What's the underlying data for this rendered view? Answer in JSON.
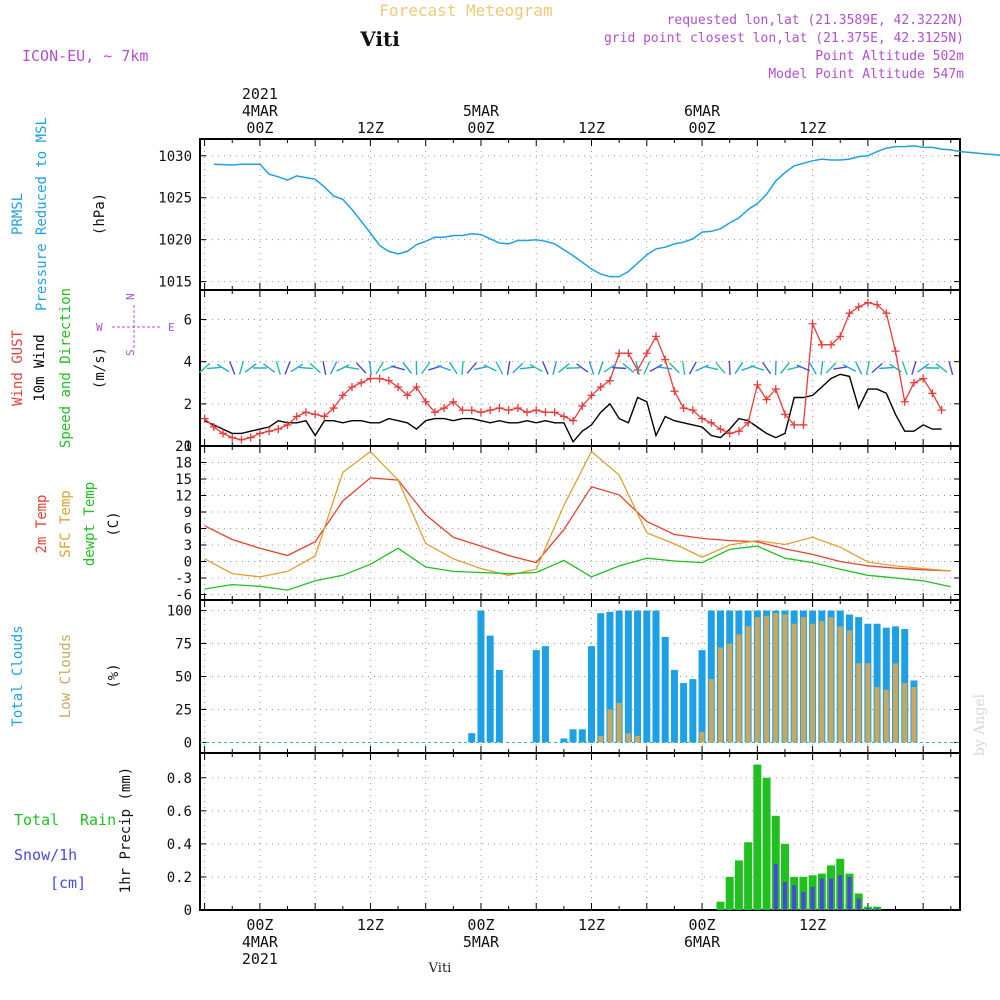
{
  "header": {
    "title": "Forecast Meteogram",
    "location": "Viti",
    "model": "ICON-EU, ~ 7km",
    "requested": "requested lon,lat (21.3589E, 42.3222N)",
    "grid_point": "grid point closest lon,lat (21.375E, 42.3125N)",
    "point_altitude": "Point Altitude 502m",
    "model_altitude": "Model Point Altitude 547m",
    "credit": "by Angel",
    "footer_location": "Viti"
  },
  "colors": {
    "pressure": "#1ea0e6",
    "gust": "#e83c3c",
    "wind": "#000000",
    "t2m": "#e84030",
    "tsfc": "#e0a030",
    "dewpt": "#20c020",
    "total_clouds": "#1ea0e6",
    "low_clouds": "#c8a860",
    "rain": "#20c020",
    "snow": "#4848e0",
    "title": "#f0c878",
    "info": "#b050d0"
  },
  "time_axis": {
    "top_labels": [
      {
        "x": 0,
        "lines": [
          "2021",
          "4MAR",
          "00Z"
        ]
      },
      {
        "x": 12,
        "lines": [
          "12Z"
        ]
      },
      {
        "x": 24,
        "lines": [
          "5MAR",
          "00Z"
        ]
      },
      {
        "x": 36,
        "lines": [
          "12Z"
        ]
      },
      {
        "x": 48,
        "lines": [
          "6MAR",
          "00Z"
        ]
      },
      {
        "x": 60,
        "lines": [
          "12Z"
        ]
      }
    ],
    "bottom_labels": [
      {
        "x": 0,
        "lines": [
          "00Z",
          "4MAR",
          "2021"
        ]
      },
      {
        "x": 12,
        "lines": [
          "12Z"
        ]
      },
      {
        "x": 24,
        "lines": [
          "00Z",
          "5MAR"
        ]
      },
      {
        "x": 36,
        "lines": [
          "12Z"
        ]
      },
      {
        "x": 48,
        "lines": [
          "00Z",
          "6MAR"
        ]
      },
      {
        "x": 60,
        "lines": [
          "12Z"
        ]
      }
    ]
  },
  "chart_data": [
    {
      "type": "line",
      "ylabels": [
        "PRMSL",
        "Pressure Reduced to MSL",
        "(hPa)"
      ],
      "ylim": [
        1014,
        1032
      ],
      "yticks": [
        1015,
        1020,
        1025,
        1030
      ],
      "x_hours": [
        -5,
        -3,
        -2,
        -1,
        0,
        1,
        2,
        3,
        4,
        5,
        6,
        7,
        8,
        9,
        10,
        11,
        12,
        13,
        14,
        15,
        16,
        17,
        18,
        19,
        20,
        21,
        22,
        23,
        24,
        25,
        26,
        27,
        28,
        29,
        30,
        31,
        32,
        33,
        34,
        35,
        36,
        37,
        38,
        39,
        40,
        41,
        42,
        43,
        44,
        45,
        46,
        47,
        48,
        49,
        50,
        51,
        52,
        53,
        54,
        55,
        56,
        57,
        58,
        59,
        60,
        61,
        62,
        63,
        64,
        65,
        66,
        67,
        68,
        69,
        70,
        71,
        72,
        73,
        74,
        75,
        76,
        77,
        78,
        79,
        80,
        81,
        82,
        83,
        84,
        85,
        86
      ],
      "series": [
        {
          "name": "PRMSL",
          "values": [
            1029,
            1028.9,
            1029,
            1029,
            1029,
            1027.8,
            1027.5,
            1027.1,
            1027.6,
            1027.4,
            1027.2,
            1026.3,
            1025.2,
            1024.8,
            1023.6,
            1022.2,
            1020.8,
            1019.3,
            1018.6,
            1018.3,
            1018.6,
            1019.4,
            1019.8,
            1020.3,
            1020.3,
            1020.5,
            1020.5,
            1020.7,
            1020.6,
            1020.1,
            1019.6,
            1019.5,
            1019.9,
            1019.9,
            1020,
            1019.8,
            1019.5,
            1018.8,
            1018.1,
            1017.3,
            1016.5,
            1015.9,
            1015.6,
            1015.6,
            1016.2,
            1017.2,
            1018.2,
            1018.9,
            1019.1,
            1019.5,
            1019.7,
            1020.1,
            1020.9,
            1021,
            1021.3,
            1022,
            1022.6,
            1023.6,
            1024.3,
            1025.4,
            1027,
            1028,
            1028.8,
            1029.1,
            1029.4,
            1029.6,
            1029.5,
            1029.5,
            1029.6,
            1029.9,
            1030,
            1030.5,
            1030.9,
            1031.1,
            1031.1,
            1031.2,
            1031,
            1031,
            1030.8,
            1030.7,
            1030.5,
            1030.4,
            1030.3,
            1030.2,
            1030.1,
            1030,
            1030
          ]
        }
      ]
    },
    {
      "type": "line",
      "ylabels": [
        "Wind GUST",
        "10m Wind",
        "Speed and Direction",
        "(m/s)"
      ],
      "compass": {
        "n": "N",
        "s": "S",
        "w": "W",
        "e": "E"
      },
      "ylim": [
        0,
        7.4
      ],
      "yticks": [
        0,
        2,
        4,
        6
      ],
      "x_hours": [
        -6,
        -5,
        -4,
        -3,
        -2,
        -1,
        0,
        1,
        2,
        3,
        4,
        5,
        6,
        7,
        8,
        9,
        10,
        11,
        12,
        13,
        14,
        15,
        16,
        17,
        18,
        19,
        20,
        21,
        22,
        23,
        24,
        25,
        26,
        27,
        28,
        29,
        30,
        31,
        32,
        33,
        34,
        35,
        36,
        37,
        38,
        39,
        40,
        41,
        42,
        43,
        44,
        45,
        46,
        47,
        48,
        49,
        50,
        51,
        52,
        53,
        54,
        55,
        56,
        57,
        58,
        59,
        60,
        61,
        62,
        63,
        64,
        65,
        66,
        67,
        68,
        69,
        70,
        71,
        72,
        73,
        74
      ],
      "series": [
        {
          "name": "Wind GUST",
          "values": [
            1.3,
            0.9,
            0.6,
            0.4,
            0.3,
            0.4,
            0.6,
            0.7,
            0.8,
            1,
            1.4,
            1.6,
            1.5,
            1.4,
            1.8,
            2.4,
            2.8,
            3,
            3.2,
            3.2,
            3.1,
            2.8,
            2.4,
            2.8,
            2.1,
            1.6,
            1.8,
            2.1,
            1.7,
            1.7,
            1.6,
            1.7,
            1.8,
            1.7,
            1.8,
            1.6,
            1.7,
            1.6,
            1.6,
            1.4,
            1.2,
            1.9,
            2.4,
            2.8,
            3.1,
            4.4,
            4.4,
            3.6,
            4.4,
            5.2,
            4.1,
            2.6,
            1.8,
            1.7,
            1.3,
            1.1,
            0.8,
            0.6,
            0.7,
            1.1,
            2.9,
            2.2,
            2.7,
            1.5,
            1.0,
            1.0,
            5.8,
            4.8,
            4.8,
            5.2,
            6.3,
            6.6,
            6.8,
            6.7,
            6.3,
            4.5,
            2.1,
            3.0,
            3.2,
            2.5,
            1.7
          ]
        },
        {
          "name": "10m Wind",
          "values": [
            1.2,
            1,
            0.8,
            0.6,
            0.6,
            0.7,
            0.8,
            0.9,
            1.2,
            1.1,
            1.1,
            1.2,
            0.5,
            1.2,
            1.2,
            1.1,
            1.2,
            1.2,
            1.1,
            1.1,
            1.3,
            1.2,
            1.1,
            0.8,
            1.2,
            1.3,
            1.3,
            1.2,
            1.3,
            1.3,
            1.2,
            1.1,
            1.2,
            1.1,
            1.1,
            1.2,
            1.1,
            1.2,
            1.1,
            1.1,
            0.2,
            0.7,
            1.0,
            1.6,
            2.0,
            1.3,
            1.1,
            2.3,
            2.1,
            0.5,
            1.4,
            1.2,
            1.1,
            1.0,
            0.9,
            0.5,
            0.4,
            0.8,
            1.3,
            1.2,
            0.9,
            0.6,
            0.4,
            0.6,
            2.3,
            2.3,
            2.4,
            2.8,
            3.2,
            3.4,
            3.3,
            1.8,
            2.7,
            2.7,
            2.5,
            1.5,
            0.7,
            0.7,
            1.0,
            0.8,
            0.8
          ]
        }
      ]
    },
    {
      "type": "line",
      "ylabels": [
        "2m Temp",
        "SFC Temp",
        "dewpt Temp",
        "(C)"
      ],
      "ylim": [
        -7,
        21
      ],
      "yticks": [
        -6,
        -3,
        0,
        3,
        6,
        9,
        12,
        15,
        18,
        21
      ],
      "x_hours": [
        -6,
        -3,
        0,
        3,
        6,
        9,
        12,
        15,
        18,
        21,
        24,
        27,
        30,
        33,
        36,
        39,
        42,
        45,
        48,
        51,
        54,
        57,
        60,
        63,
        66,
        69,
        72,
        75
      ],
      "series": [
        {
          "name": "2m Temp",
          "values": [
            6.5,
            4,
            2.4,
            1.1,
            3.6,
            11,
            15.2,
            14.8,
            8.5,
            4.4,
            2.8,
            1.1,
            -0.2,
            5.8,
            13.6,
            12.1,
            7.3,
            4.9,
            4.2,
            3.8,
            3.6,
            2.3,
            1.3,
            0.0,
            -0.8,
            -1.2,
            -1.5,
            -1.7
          ]
        },
        {
          "name": "SFC Temp",
          "values": [
            0.5,
            -2.2,
            -2.8,
            -1.8,
            1,
            16.2,
            20,
            14.8,
            3.3,
            0.5,
            -1.3,
            -2.5,
            -1.4,
            10.2,
            20,
            15.7,
            5.2,
            3.2,
            0.8,
            3,
            3.8,
            3.1,
            4.4,
            2.6,
            -0.1,
            -0.8,
            -1.3,
            -1.7
          ]
        },
        {
          "name": "dewpt Temp",
          "values": [
            -5,
            -4.2,
            -4.5,
            -5.2,
            -3.5,
            -2.5,
            -0.5,
            2.4,
            -1,
            -1.8,
            -2,
            -2.2,
            -2,
            0.2,
            -2.8,
            -0.8,
            0.6,
            0.1,
            -0.2,
            2.2,
            2.8,
            0.6,
            -0.2,
            -1.4,
            -2.5,
            -3,
            -3.5,
            -4.6
          ]
        }
      ]
    },
    {
      "type": "bar",
      "ylabels": [
        "Total Clouds",
        "Low Clouds",
        "(%)"
      ],
      "ylim": [
        -8,
        108
      ],
      "yticks": [
        0,
        25,
        50,
        75,
        100
      ],
      "x_hours": [
        23,
        24,
        25,
        26,
        30,
        31,
        33,
        34,
        35,
        36,
        37,
        38,
        39,
        40,
        41,
        42,
        43,
        44,
        45,
        46,
        47,
        48,
        49,
        50,
        51,
        52,
        53,
        54,
        55,
        56,
        57,
        58,
        59,
        60,
        61,
        62,
        63,
        64,
        65,
        66,
        67,
        68,
        69,
        70,
        71
      ],
      "series": [
        {
          "name": "Total Clouds",
          "values": [
            7,
            100,
            81,
            55,
            70,
            73,
            3,
            10,
            10,
            73,
            98,
            99,
            100,
            100,
            100,
            100,
            100,
            80,
            55,
            45,
            48,
            70,
            100,
            100,
            100,
            100,
            100,
            100,
            100,
            100,
            100,
            100,
            100,
            100,
            100,
            100,
            100,
            97,
            95,
            90,
            90,
            87,
            88,
            86,
            47
          ]
        },
        {
          "name": "Low Clouds",
          "values": [
            0,
            0,
            0,
            0,
            0,
            0,
            0,
            0,
            0,
            0,
            5,
            25,
            30,
            7,
            5,
            0,
            0,
            0,
            0,
            0,
            0,
            8,
            48,
            72,
            75,
            82,
            88,
            95,
            96,
            98,
            97,
            90,
            95,
            90,
            92,
            95,
            88,
            85,
            60,
            60,
            42,
            40,
            60,
            45,
            42
          ]
        }
      ]
    },
    {
      "type": "bar",
      "ylabels": [
        "Total",
        "Rain",
        "Snow/1h",
        "[cm]",
        "1hr Precip (mm)"
      ],
      "ylim": [
        0,
        0.95
      ],
      "yticks": [
        0,
        0.2,
        0.4,
        0.6,
        0.8
      ],
      "x_hours": [
        49,
        50,
        51,
        52,
        53,
        54,
        55,
        56,
        57,
        58,
        59,
        60,
        61,
        62,
        63,
        64,
        65,
        66,
        67,
        68,
        69,
        70,
        71,
        72
      ],
      "series": [
        {
          "name": "Total Rain",
          "values": [
            0,
            0.05,
            0.2,
            0.3,
            0.41,
            0.88,
            0.8,
            0.57,
            0.4,
            0.2,
            0.2,
            0.21,
            0.22,
            0.27,
            0.31,
            0.22,
            0.1,
            0.02,
            0.02,
            0,
            0,
            0,
            0,
            0
          ]
        },
        {
          "name": "Snow/1h",
          "values": [
            0,
            0,
            0,
            0,
            0,
            0,
            0,
            0.28,
            0.17,
            0.15,
            0.11,
            0.14,
            0.19,
            0.19,
            0.21,
            0.2,
            0.07,
            0.01,
            0.01,
            0,
            0,
            0,
            0,
            0
          ]
        }
      ]
    }
  ]
}
